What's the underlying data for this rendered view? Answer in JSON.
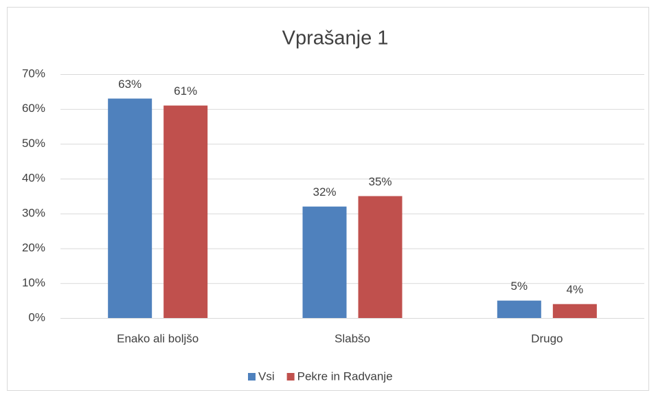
{
  "chart_data": {
    "type": "bar",
    "title": "Vprašanje 1",
    "categories": [
      "Enako ali boljšo",
      "Slabšo",
      "Drugo"
    ],
    "series": [
      {
        "name": "Vsi",
        "color": "#4f81bd",
        "values": [
          63,
          32,
          5
        ],
        "value_labels": [
          "63%",
          "32%",
          "5%"
        ]
      },
      {
        "name": "Pekre in Radvanje",
        "color": "#c0504d",
        "values": [
          61,
          35,
          4
        ],
        "value_labels": [
          "61%",
          "35%",
          "4%"
        ]
      }
    ],
    "ylim": [
      0,
      70
    ],
    "yticks": [
      {
        "value": 0,
        "label": "0%"
      },
      {
        "value": 10,
        "label": "10%"
      },
      {
        "value": 20,
        "label": "20%"
      },
      {
        "value": 30,
        "label": "30%"
      },
      {
        "value": 40,
        "label": "40%"
      },
      {
        "value": 50,
        "label": "50%"
      },
      {
        "value": 60,
        "label": "60%"
      },
      {
        "value": 70,
        "label": "70%"
      }
    ],
    "grid": true,
    "legend": "bottom"
  }
}
